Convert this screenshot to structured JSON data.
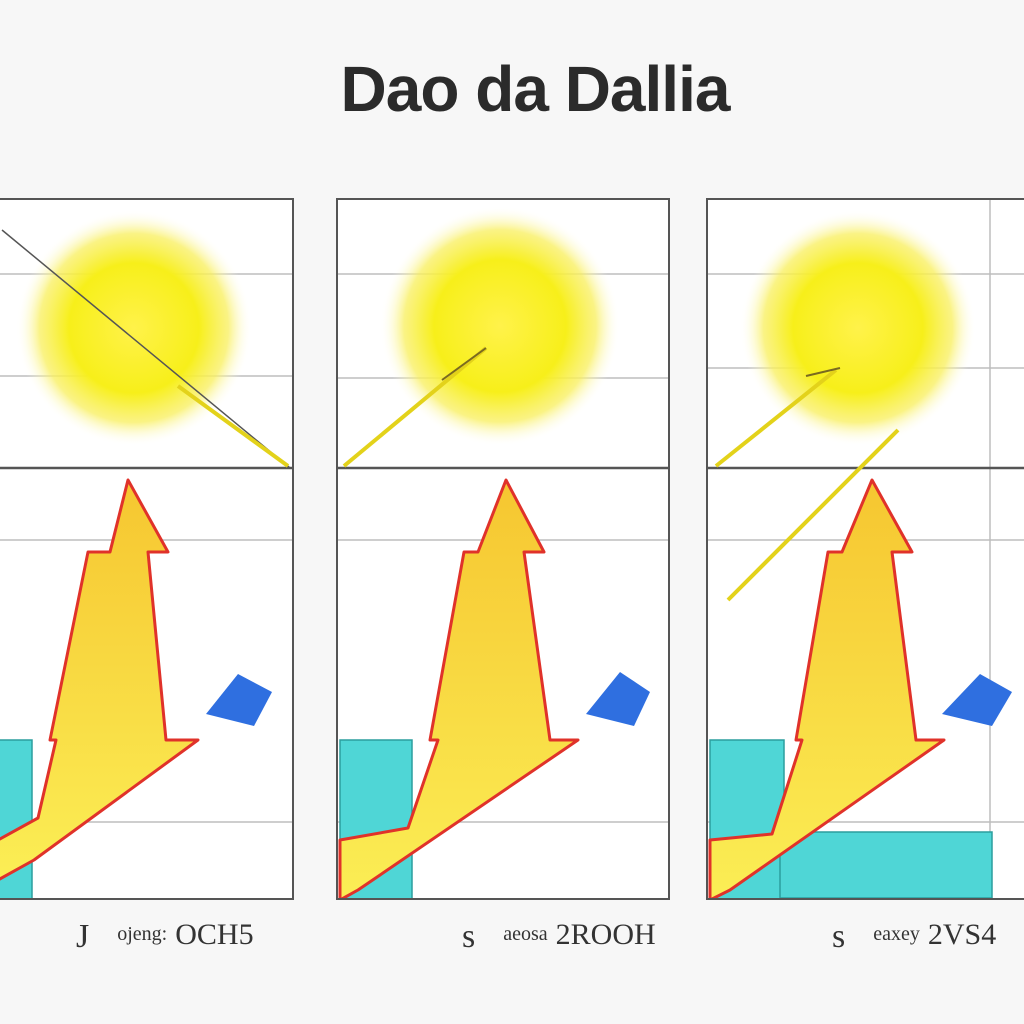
{
  "title": "Dao da Dallia",
  "panels": [
    {
      "caption_mark": "J",
      "caption_small": "ojeng:",
      "caption_big": "OCH5"
    },
    {
      "caption_mark": "s",
      "caption_small": "aeosa",
      "caption_big": "2ROOH"
    },
    {
      "caption_mark": "s",
      "caption_small": "eaxey",
      "caption_big": "2VS4"
    }
  ],
  "colors": {
    "sun": "#f7ef1a",
    "arrow_fill": "#f8e63a",
    "arrow_edge": "#e0322a",
    "teal": "#4fd6d6",
    "blue": "#2f6fe0",
    "grid": "#bdbdbd",
    "frame": "#555555"
  }
}
